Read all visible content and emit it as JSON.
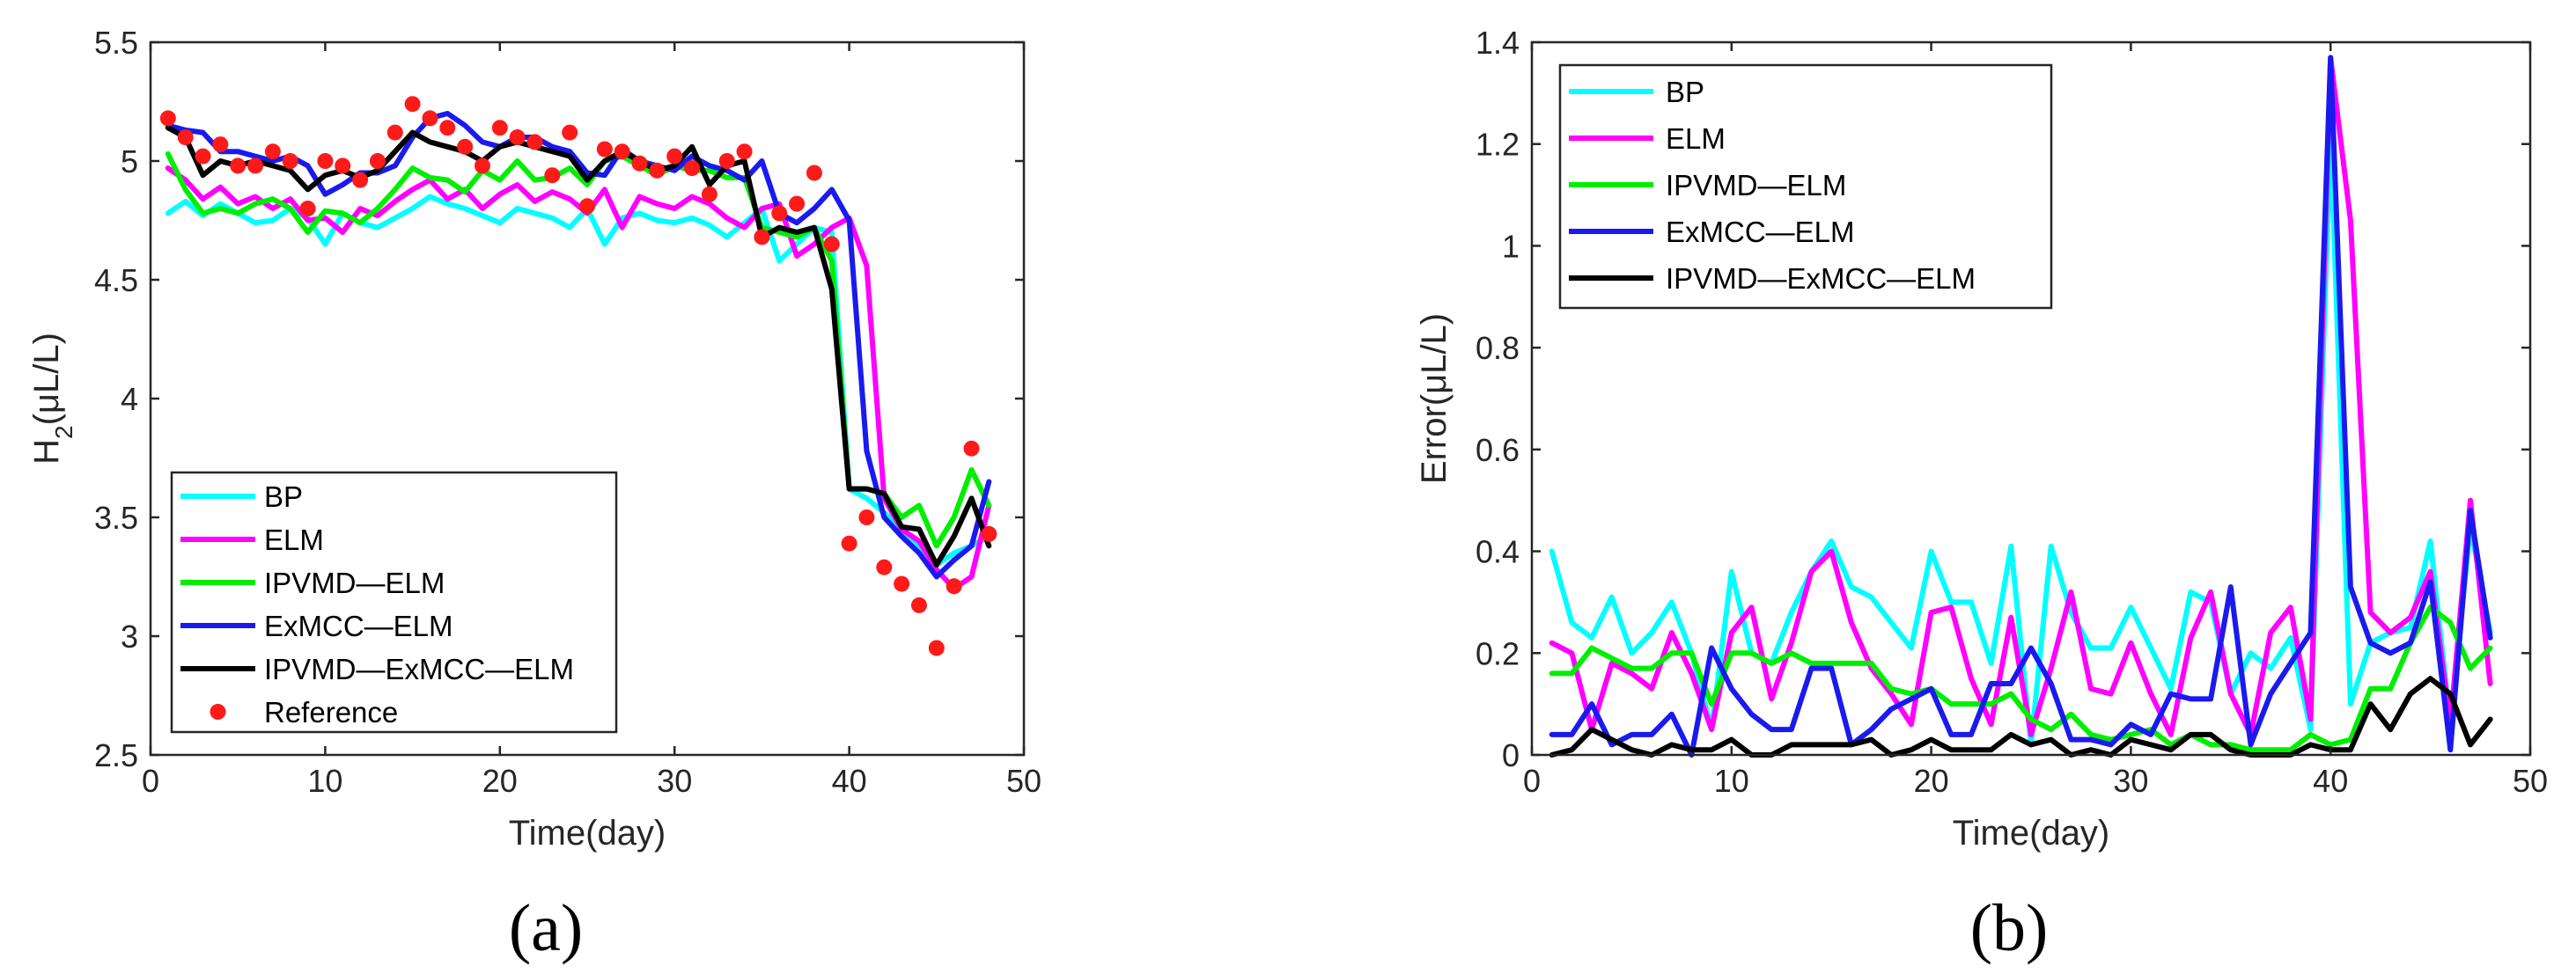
{
  "chart_data": [
    {
      "type": "line",
      "panel_label": "(a)",
      "xlabel": "Time(day)",
      "ylabel_main": "H",
      "ylabel_sub": "2",
      "ylabel_rest": "(μL/L)",
      "xlim": [
        0,
        50
      ],
      "ylim": [
        2.5,
        5.5
      ],
      "xticks": [
        0,
        10,
        20,
        30,
        40,
        50
      ],
      "yticks": [
        2.5,
        3,
        3.5,
        4,
        4.5,
        5,
        5.5
      ],
      "ytick_labels": [
        "2.5",
        "3",
        "3.5",
        "4",
        "4.5",
        "5",
        "5.5"
      ],
      "legend_position": "bottom-left",
      "x": [
        1,
        2,
        3,
        4,
        5,
        6,
        7,
        8,
        9,
        10,
        11,
        12,
        13,
        14,
        15,
        16,
        17,
        18,
        19,
        20,
        21,
        22,
        23,
        24,
        25,
        26,
        27,
        28,
        29,
        30,
        31,
        32,
        33,
        34,
        35,
        36,
        37,
        38,
        39,
        40,
        41,
        42,
        43,
        44,
        45,
        46,
        47,
        48
      ],
      "series": [
        {
          "name": "BP",
          "color": "#00ffff",
          "values": [
            4.78,
            4.83,
            4.77,
            4.82,
            4.78,
            4.74,
            4.75,
            4.8,
            4.76,
            4.65,
            4.78,
            4.74,
            4.72,
            4.76,
            4.8,
            4.85,
            4.82,
            4.8,
            4.77,
            4.74,
            4.8,
            4.78,
            4.76,
            4.72,
            4.8,
            4.65,
            4.76,
            4.78,
            4.75,
            4.74,
            4.76,
            4.73,
            4.68,
            4.74,
            4.8,
            4.58,
            4.65,
            4.72,
            4.7,
            3.62,
            3.58,
            3.52,
            3.45,
            3.38,
            3.3,
            3.35,
            3.38,
            3.42
          ]
        },
        {
          "name": "ELM",
          "color": "#ff00ff",
          "values": [
            4.97,
            4.92,
            4.84,
            4.89,
            4.82,
            4.85,
            4.8,
            4.84,
            4.75,
            4.76,
            4.7,
            4.8,
            4.77,
            4.83,
            4.88,
            4.92,
            4.84,
            4.88,
            4.8,
            4.86,
            4.9,
            4.83,
            4.87,
            4.84,
            4.78,
            4.88,
            4.72,
            4.85,
            4.82,
            4.8,
            4.85,
            4.82,
            4.76,
            4.72,
            4.8,
            4.82,
            4.6,
            4.65,
            4.72,
            4.76,
            4.56,
            3.58,
            3.45,
            3.4,
            3.28,
            3.2,
            3.25,
            3.55
          ]
        },
        {
          "name": "IPVMD—ELM",
          "color": "#00ee00",
          "values": [
            5.03,
            4.88,
            4.78,
            4.8,
            4.78,
            4.82,
            4.84,
            4.8,
            4.7,
            4.79,
            4.78,
            4.74,
            4.8,
            4.88,
            4.97,
            4.93,
            4.92,
            4.87,
            4.96,
            4.92,
            5.0,
            4.92,
            4.93,
            4.97,
            4.9,
            5.0,
            5.02,
            4.98,
            4.94,
            4.98,
            4.96,
            4.96,
            4.93,
            4.93,
            4.72,
            4.7,
            4.68,
            4.72,
            4.58,
            3.62,
            3.62,
            3.6,
            3.5,
            3.55,
            3.38,
            3.5,
            3.7,
            3.55
          ]
        },
        {
          "name": "ExMCC—ELM",
          "color": "#1a1aee",
          "values": [
            5.15,
            5.13,
            5.12,
            5.04,
            5.04,
            5.02,
            5.0,
            5.02,
            4.98,
            4.86,
            4.9,
            4.95,
            4.95,
            4.98,
            5.1,
            5.18,
            5.2,
            5.15,
            5.08,
            5.06,
            5.1,
            5.1,
            5.06,
            5.04,
            4.95,
            4.94,
            5.05,
            5.0,
            4.98,
            4.96,
            5.02,
            4.98,
            4.96,
            4.92,
            5.0,
            4.78,
            4.74,
            4.8,
            4.88,
            4.75,
            3.78,
            3.5,
            3.42,
            3.35,
            3.25,
            3.32,
            3.38,
            3.65
          ]
        },
        {
          "name": "IPVMD—ExMCC—ELM",
          "color": "#000000",
          "values": [
            5.14,
            5.1,
            4.94,
            5.0,
            4.98,
            5.0,
            4.98,
            4.96,
            4.88,
            4.94,
            4.96,
            4.93,
            4.96,
            5.04,
            5.12,
            5.08,
            5.06,
            5.04,
            5.0,
            5.06,
            5.08,
            5.06,
            5.04,
            5.02,
            4.92,
            5.0,
            5.04,
            5.0,
            4.96,
            4.98,
            5.06,
            4.9,
            4.98,
            5.0,
            4.68,
            4.72,
            4.7,
            4.72,
            4.46,
            3.62,
            3.62,
            3.6,
            3.46,
            3.45,
            3.3,
            3.42,
            3.58,
            3.38
          ]
        }
      ],
      "reference": {
        "name": "Reference",
        "color": "#ff1a1a",
        "values": [
          5.18,
          5.1,
          5.02,
          5.07,
          4.98,
          4.98,
          5.04,
          5.0,
          4.8,
          5.0,
          4.98,
          4.92,
          5.0,
          5.12,
          5.24,
          5.18,
          5.14,
          5.06,
          4.98,
          5.14,
          5.1,
          5.08,
          4.94,
          5.12,
          4.81,
          5.05,
          5.04,
          4.99,
          4.96,
          5.02,
          4.97,
          4.86,
          5.0,
          5.04,
          4.68,
          4.78,
          4.82,
          4.95,
          4.65,
          3.39,
          3.5,
          3.29,
          3.22,
          3.13,
          2.95,
          3.21,
          3.79,
          3.43
        ]
      }
    },
    {
      "type": "line",
      "panel_label": "(b)",
      "xlabel": "Time(day)",
      "ylabel": "Error(μL/L)",
      "xlim": [
        0,
        50
      ],
      "ylim": [
        0,
        1.4
      ],
      "xticks": [
        0,
        10,
        20,
        30,
        40,
        50
      ],
      "yticks": [
        0,
        0.2,
        0.4,
        0.6,
        0.8,
        1,
        1.2,
        1.4
      ],
      "ytick_labels": [
        "0",
        "0.2",
        "0.4",
        "0.6",
        "0.8",
        "1",
        "1.2",
        "1.4"
      ],
      "legend_position": "top-left",
      "x": [
        1,
        2,
        3,
        4,
        5,
        6,
        7,
        8,
        9,
        10,
        11,
        12,
        13,
        14,
        15,
        16,
        17,
        18,
        19,
        20,
        21,
        22,
        23,
        24,
        25,
        26,
        27,
        28,
        29,
        30,
        31,
        32,
        33,
        34,
        35,
        36,
        37,
        38,
        39,
        40,
        41,
        42,
        43,
        44,
        45,
        46,
        47,
        48
      ],
      "series": [
        {
          "name": "BP",
          "color": "#00ffff",
          "values": [
            0.4,
            0.26,
            0.23,
            0.31,
            0.2,
            0.24,
            0.3,
            0.2,
            0.05,
            0.36,
            0.2,
            0.18,
            0.28,
            0.36,
            0.42,
            0.33,
            0.31,
            0.26,
            0.21,
            0.4,
            0.3,
            0.3,
            0.18,
            0.41,
            0.02,
            0.41,
            0.28,
            0.21,
            0.21,
            0.29,
            0.21,
            0.13,
            0.32,
            0.3,
            0.12,
            0.2,
            0.17,
            0.23,
            0.05,
            1.22,
            0.1,
            0.22,
            0.24,
            0.25,
            0.42,
            0.06,
            0.45,
            0.24
          ]
        },
        {
          "name": "ELM",
          "color": "#ff00ff",
          "values": [
            0.22,
            0.2,
            0.05,
            0.18,
            0.16,
            0.13,
            0.24,
            0.16,
            0.05,
            0.24,
            0.29,
            0.11,
            0.22,
            0.36,
            0.4,
            0.26,
            0.17,
            0.12,
            0.06,
            0.28,
            0.29,
            0.15,
            0.06,
            0.27,
            0.04,
            0.17,
            0.32,
            0.13,
            0.12,
            0.22,
            0.12,
            0.04,
            0.23,
            0.32,
            0.12,
            0.04,
            0.24,
            0.29,
            0.07,
            1.37,
            1.05,
            0.28,
            0.24,
            0.27,
            0.36,
            0.06,
            0.5,
            0.14
          ]
        },
        {
          "name": "IPVMD—ELM",
          "color": "#00ee00",
          "values": [
            0.16,
            0.16,
            0.21,
            0.19,
            0.17,
            0.17,
            0.2,
            0.2,
            0.1,
            0.2,
            0.2,
            0.18,
            0.2,
            0.18,
            0.18,
            0.18,
            0.18,
            0.13,
            0.12,
            0.13,
            0.1,
            0.1,
            0.1,
            0.12,
            0.07,
            0.05,
            0.08,
            0.04,
            0.03,
            0.04,
            0.05,
            0.02,
            0.04,
            0.02,
            0.02,
            0.01,
            0.01,
            0.01,
            0.04,
            0.02,
            0.03,
            0.13,
            0.13,
            0.22,
            0.29,
            0.26,
            0.17,
            0.21
          ]
        },
        {
          "name": "ExMCC—ELM",
          "color": "#1a1aee",
          "values": [
            0.04,
            0.04,
            0.1,
            0.02,
            0.04,
            0.04,
            0.08,
            0.0,
            0.21,
            0.13,
            0.08,
            0.05,
            0.05,
            0.17,
            0.17,
            0.02,
            0.05,
            0.09,
            0.11,
            0.13,
            0.04,
            0.04,
            0.14,
            0.14,
            0.21,
            0.14,
            0.03,
            0.03,
            0.02,
            0.06,
            0.04,
            0.12,
            0.11,
            0.11,
            0.33,
            0.02,
            0.12,
            0.18,
            0.24,
            1.37,
            0.33,
            0.22,
            0.2,
            0.22,
            0.34,
            0.01,
            0.48,
            0.23
          ]
        },
        {
          "name": "IPVMD—ExMCC—ELM",
          "color": "#000000",
          "values": [
            0.0,
            0.01,
            0.05,
            0.03,
            0.01,
            0.0,
            0.02,
            0.01,
            0.01,
            0.03,
            0.0,
            0.0,
            0.02,
            0.02,
            0.02,
            0.02,
            0.03,
            0.0,
            0.01,
            0.03,
            0.01,
            0.01,
            0.01,
            0.04,
            0.02,
            0.03,
            0.0,
            0.01,
            0.0,
            0.03,
            0.02,
            0.01,
            0.04,
            0.04,
            0.01,
            0.0,
            0.0,
            0.0,
            0.02,
            0.01,
            0.01,
            0.1,
            0.05,
            0.12,
            0.15,
            0.12,
            0.02,
            0.07
          ]
        }
      ]
    }
  ]
}
